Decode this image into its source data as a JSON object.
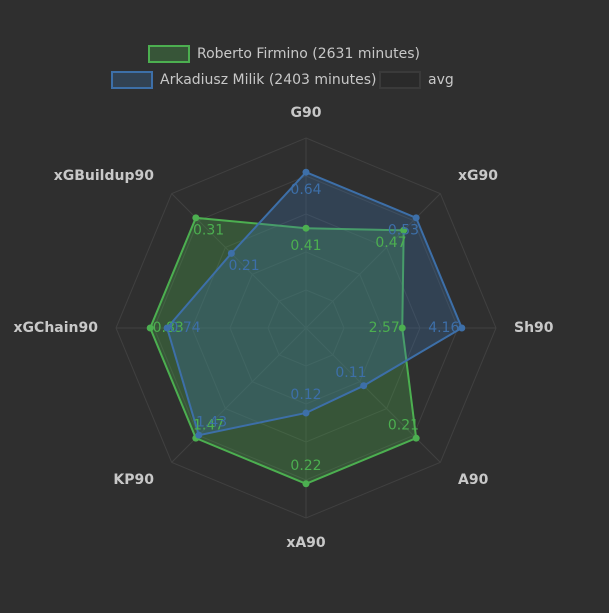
{
  "chart_data": {
    "type": "radar",
    "categories": [
      "G90",
      "xG90",
      "Sh90",
      "A90",
      "xA90",
      "KP90",
      "xGChain90",
      "xGBuildup90"
    ],
    "series": [
      {
        "name": "Roberto Firmino (2631 minutes)",
        "color": "#4caf50",
        "values": [
          0.41,
          0.47,
          2.57,
          0.21,
          0.22,
          1.47,
          0.83,
          0.31
        ]
      },
      {
        "name": "Arkadiusz Milik (2403 minutes)",
        "color": "#3d6fa8",
        "values": [
          0.64,
          0.53,
          4.16,
          0.11,
          0.12,
          1.43,
          0.74,
          0.21
        ]
      },
      {
        "name": "avg",
        "color": "#2a2a2a",
        "values": [
          null,
          null,
          null,
          null,
          null,
          null,
          null,
          null
        ]
      }
    ],
    "grid": true
  }
}
